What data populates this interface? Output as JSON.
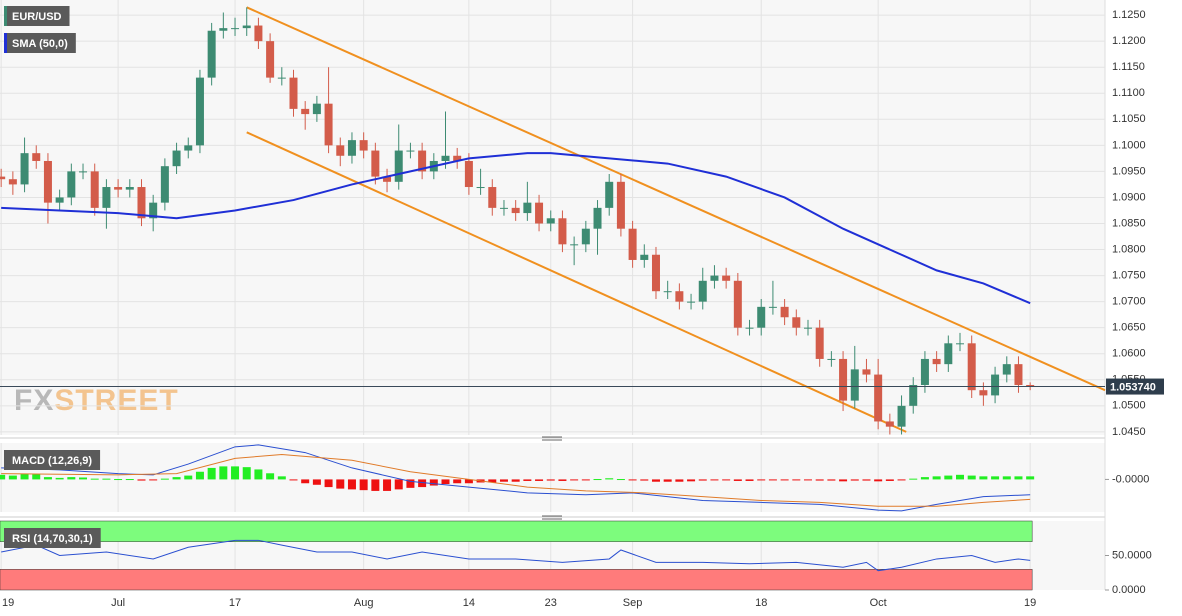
{
  "chart_data": {
    "type": "candlestick",
    "symbol": "EUR/USD",
    "watermark": [
      "FX",
      "STREET"
    ],
    "xlim": [
      -0.1,
      94.4
    ],
    "xticks": [
      {
        "value": 0,
        "label": "19"
      },
      {
        "value": 10,
        "label": "Jul"
      },
      {
        "value": 20,
        "label": "17"
      },
      {
        "value": 31,
        "label": "Aug"
      },
      {
        "value": 40,
        "label": "14"
      },
      {
        "value": 47,
        "label": "23"
      },
      {
        "value": 54,
        "label": "Sep"
      },
      {
        "value": 65,
        "label": "18"
      },
      {
        "value": 75,
        "label": "Oct"
      },
      {
        "value": 88,
        "label": "19"
      }
    ],
    "ylim": [
      1.0444,
      1.1279
    ],
    "yticks": [
      {
        "value": 1.045,
        "label": "1.0450"
      },
      {
        "value": 1.05,
        "label": "1.0500"
      },
      {
        "value": 1.055,
        "label": "1.0550"
      },
      {
        "value": 1.06,
        "label": "1.0600"
      },
      {
        "value": 1.065,
        "label": "1.0650"
      },
      {
        "value": 1.07,
        "label": "1.0700"
      },
      {
        "value": 1.075,
        "label": "1.0750"
      },
      {
        "value": 1.08,
        "label": "1.0800"
      },
      {
        "value": 1.085,
        "label": "1.0850"
      },
      {
        "value": 1.09,
        "label": "1.0900"
      },
      {
        "value": 1.095,
        "label": "1.0950"
      },
      {
        "value": 1.1,
        "label": "1.1000"
      },
      {
        "value": 1.105,
        "label": "1.1050"
      },
      {
        "value": 1.11,
        "label": "1.1100"
      },
      {
        "value": 1.115,
        "label": "1.1150"
      },
      {
        "value": 1.12,
        "label": "1.1200"
      },
      {
        "value": 1.125,
        "label": "1.1250"
      }
    ],
    "grid": true,
    "up_color": "#3d8b72",
    "down_color": "#d35c4a",
    "open": [
      1.094,
      1.0935,
      1.0925,
      1.0985,
      1.097,
      1.089,
      1.09,
      1.095,
      1.095,
      1.088,
      1.092,
      1.0915,
      1.092,
      1.086,
      1.089,
      1.096,
      1.099,
      1.1,
      1.113,
      1.122,
      1.1225,
      1.1225,
      1.123,
      1.12,
      1.113,
      1.113,
      1.107,
      1.106,
      1.108,
      1.1,
      1.098,
      1.101,
      1.099,
      1.094,
      1.093,
      1.099,
      1.099,
      1.095,
      1.097,
      1.098,
      1.097,
      1.092,
      1.092,
      1.088,
      1.088,
      1.087,
      1.089,
      1.085,
      1.086,
      1.081,
      1.081,
      1.084,
      1.088,
      1.093,
      1.084,
      1.078,
      1.079,
      1.072,
      1.072,
      1.07,
      1.07,
      1.074,
      1.075,
      1.074,
      1.065,
      1.065,
      1.069,
      1.069,
      1.067,
      1.065,
      1.065,
      1.059,
      1.059,
      1.051,
      1.057,
      1.056,
      1.047,
      1.046,
      1.05,
      1.054,
      1.059,
      1.058,
      1.062,
      1.062,
      1.053,
      1.052,
      1.056,
      1.058,
      1.054
    ],
    "high": [
      1.0955,
      1.095,
      1.1015,
      1.1,
      1.0985,
      1.0915,
      1.0965,
      1.0965,
      1.0965,
      1.0935,
      1.0935,
      1.0935,
      1.0935,
      1.0905,
      1.0975,
      1.1005,
      1.1015,
      1.1145,
      1.1235,
      1.1255,
      1.1245,
      1.1265,
      1.1245,
      1.1215,
      1.115,
      1.1145,
      1.1085,
      1.1095,
      1.115,
      1.1015,
      1.1025,
      1.1025,
      1.1005,
      1.0955,
      1.104,
      1.1005,
      1.1005,
      1.0985,
      1.1065,
      1.0995,
      1.0985,
      1.0955,
      1.0935,
      1.0895,
      1.0895,
      1.093,
      1.0905,
      1.0875,
      1.0875,
      1.0825,
      1.0855,
      1.0895,
      1.0945,
      1.0945,
      1.0855,
      1.081,
      1.0805,
      1.074,
      1.0735,
      1.0715,
      1.0765,
      1.077,
      1.0765,
      1.0755,
      1.0665,
      1.0705,
      1.074,
      1.0705,
      1.0685,
      1.0665,
      1.0665,
      1.0605,
      1.0605,
      1.0615,
      1.059,
      1.059,
      1.0485,
      1.052,
      1.0555,
      1.0605,
      1.0605,
      1.0635,
      1.064,
      1.0635,
      1.0545,
      1.0575,
      1.0595,
      1.0595,
      1.0545
    ],
    "low": [
      1.092,
      1.0905,
      1.091,
      1.0955,
      1.085,
      1.0875,
      1.0885,
      1.0935,
      1.0865,
      1.084,
      1.09,
      1.09,
      1.0845,
      1.0835,
      1.0875,
      1.0945,
      1.0975,
      1.0985,
      1.1115,
      1.1205,
      1.121,
      1.121,
      1.1185,
      1.112,
      1.1115,
      1.1055,
      1.103,
      1.1045,
      1.0985,
      1.096,
      1.0965,
      1.0975,
      1.0925,
      1.091,
      1.0915,
      1.0975,
      1.0935,
      1.0935,
      1.0955,
      1.0955,
      1.0905,
      1.0905,
      1.0865,
      1.0865,
      1.0855,
      1.0855,
      1.0835,
      1.0835,
      1.0795,
      1.077,
      1.0795,
      1.079,
      1.0865,
      1.0825,
      1.0765,
      1.0765,
      1.0705,
      1.0705,
      1.0685,
      1.0685,
      1.0685,
      1.0725,
      1.0725,
      1.0635,
      1.0635,
      1.0635,
      1.0675,
      1.0655,
      1.0635,
      1.0635,
      1.0575,
      1.0575,
      1.049,
      1.0495,
      1.0545,
      1.0455,
      1.0445,
      1.0445,
      1.0485,
      1.0525,
      1.0565,
      1.0565,
      1.0605,
      1.0515,
      1.05,
      1.0505,
      1.0545,
      1.0525,
      1.053
    ],
    "close": [
      1.0935,
      1.0925,
      1.0985,
      1.097,
      1.089,
      1.09,
      1.095,
      1.095,
      1.088,
      1.092,
      1.0915,
      1.092,
      1.086,
      1.089,
      1.096,
      1.099,
      1.1,
      1.113,
      1.122,
      1.1225,
      1.1225,
      1.123,
      1.12,
      1.113,
      1.113,
      1.107,
      1.106,
      1.108,
      1.1,
      1.098,
      1.101,
      1.099,
      1.094,
      1.093,
      1.099,
      1.099,
      1.095,
      1.097,
      1.098,
      1.097,
      1.092,
      1.092,
      1.088,
      1.088,
      1.087,
      1.089,
      1.085,
      1.086,
      1.081,
      1.081,
      1.084,
      1.088,
      1.093,
      1.084,
      1.078,
      1.079,
      1.072,
      1.072,
      1.07,
      1.07,
      1.074,
      1.075,
      1.074,
      1.065,
      1.065,
      1.069,
      1.069,
      1.067,
      1.065,
      1.065,
      1.059,
      1.059,
      1.051,
      1.057,
      1.056,
      1.047,
      1.046,
      1.05,
      1.054,
      1.059,
      1.058,
      1.062,
      1.062,
      1.053,
      1.052,
      1.056,
      1.058,
      1.054,
      1.0537
    ],
    "last_price": {
      "value": 1.0537,
      "label": "1.053740"
    },
    "overlays": [
      {
        "name": "SMA (50,0)",
        "color": "#1f2fd6",
        "x": [
          0,
          10,
          15,
          20,
          25,
          30,
          35,
          40,
          45,
          47,
          52,
          57,
          62,
          67,
          72,
          77,
          80,
          84,
          88
        ],
        "values": [
          1.088,
          1.087,
          1.086,
          1.0875,
          1.0895,
          1.0925,
          1.095,
          1.0975,
          1.0985,
          1.0985,
          1.0975,
          1.0965,
          1.094,
          1.09,
          1.084,
          1.079,
          1.076,
          1.0735,
          1.0697
        ]
      }
    ],
    "channel": [
      {
        "color": "#f0901f",
        "x": [
          21,
          94.4
        ],
        "values": [
          1.1265,
          1.053
        ]
      },
      {
        "color": "#f0901f",
        "x": [
          21,
          77.4
        ],
        "values": [
          1.1025,
          1.045
        ]
      }
    ],
    "indicators": [
      {
        "type": "macd",
        "name": "MACD (12,26,9)",
        "ylim": [
          -0.0085,
          0.0095
        ],
        "yticks": [
          {
            "value": 0,
            "label": "-0.0000"
          }
        ],
        "pos_color": "#22ee22",
        "neg_color": "#ee1111",
        "histogram": [
          0.0012,
          0.001,
          0.0014,
          0.0013,
          0.0006,
          0.0004,
          0.0006,
          0.0005,
          0.0002,
          0.0002,
          0.0001,
          0.0001,
          -0.0003,
          -0.0002,
          0.0002,
          0.0006,
          0.001,
          0.002,
          0.003,
          0.0034,
          0.0034,
          0.0032,
          0.0026,
          0.0016,
          0.0008,
          -0.0002,
          -0.001,
          -0.0014,
          -0.002,
          -0.0024,
          -0.0026,
          -0.0028,
          -0.003,
          -0.003,
          -0.0026,
          -0.0022,
          -0.002,
          -0.0016,
          -0.0012,
          -0.001,
          -0.001,
          -0.0008,
          -0.0008,
          -0.0006,
          -0.0006,
          -0.0004,
          -0.0004,
          -0.0003,
          -0.0004,
          -0.0002,
          -0.0001,
          0.0001,
          0.0003,
          0.0001,
          -0.0002,
          -0.0003,
          -0.0006,
          -0.0006,
          -0.0006,
          -0.0005,
          -0.0003,
          -0.0002,
          -0.0002,
          -0.0004,
          -0.0004,
          -0.0002,
          -0.0002,
          -0.0002,
          -0.0002,
          -0.0002,
          -0.0003,
          -0.0003,
          -0.0005,
          -0.0003,
          -0.0003,
          -0.0005,
          -0.0004,
          -0.0002,
          0.0002,
          0.0006,
          0.0008,
          0.001,
          0.0012,
          0.001,
          0.0008,
          0.0008,
          0.0008,
          0.0008,
          0.0008
        ],
        "series": [
          {
            "color": "#2a4fd0",
            "x": [
              0,
              5,
              10,
              13,
              16,
              20,
              22,
              26,
              30,
              35,
              40,
              45,
              50,
              54,
              60,
              65,
              70,
              75,
              77,
              80,
              84,
              88
            ],
            "values": [
              0.003,
              0.0025,
              0.0015,
              0.0012,
              0.004,
              0.0085,
              0.009,
              0.007,
              0.003,
              -0.0005,
              -0.002,
              -0.0035,
              -0.004,
              -0.0035,
              -0.0055,
              -0.006,
              -0.0065,
              -0.008,
              -0.0082,
              -0.0065,
              -0.0045,
              -0.004
            ]
          },
          {
            "color": "#e07b2a",
            "x": [
              0,
              10,
              15,
              20,
              24,
              30,
              35,
              40,
              45,
              50,
              55,
              60,
              65,
              70,
              75,
              80,
              84,
              88
            ],
            "values": [
              0.0015,
              0.0012,
              0.0015,
              0.0055,
              0.0065,
              0.005,
              0.002,
              0.0,
              -0.002,
              -0.003,
              -0.0035,
              -0.0045,
              -0.0055,
              -0.006,
              -0.007,
              -0.007,
              -0.006,
              -0.0052
            ]
          }
        ]
      },
      {
        "type": "rsi",
        "name": "RSI (14,70,30,1)",
        "ylim": [
          0,
          100
        ],
        "yticks": [
          {
            "value": 0,
            "label": "0.0000"
          },
          {
            "value": 50,
            "label": "50.0000"
          }
        ],
        "bands": [
          {
            "from": 70,
            "to": 100,
            "color": "#7dfc7d"
          },
          {
            "from": 0,
            "to": 30,
            "color": "#ff7b7b"
          }
        ],
        "series": [
          {
            "color": "#2a4fd0",
            "x": [
              0,
              3,
              5,
              9,
              13,
              16,
              20,
              22,
              24,
              27,
              30,
              33,
              36,
              40,
              44,
              48,
              52,
              53,
              56,
              60,
              64,
              68,
              72,
              74,
              75,
              77,
              80,
              83,
              85,
              87,
              88
            ],
            "values": [
              55,
              65,
              50,
              55,
              45,
              62,
              72,
              72,
              65,
              55,
              55,
              45,
              55,
              45,
              45,
              40,
              45,
              58,
              40,
              40,
              38,
              40,
              33,
              40,
              28,
              33,
              45,
              50,
              40,
              45,
              43
            ]
          }
        ]
      }
    ]
  }
}
